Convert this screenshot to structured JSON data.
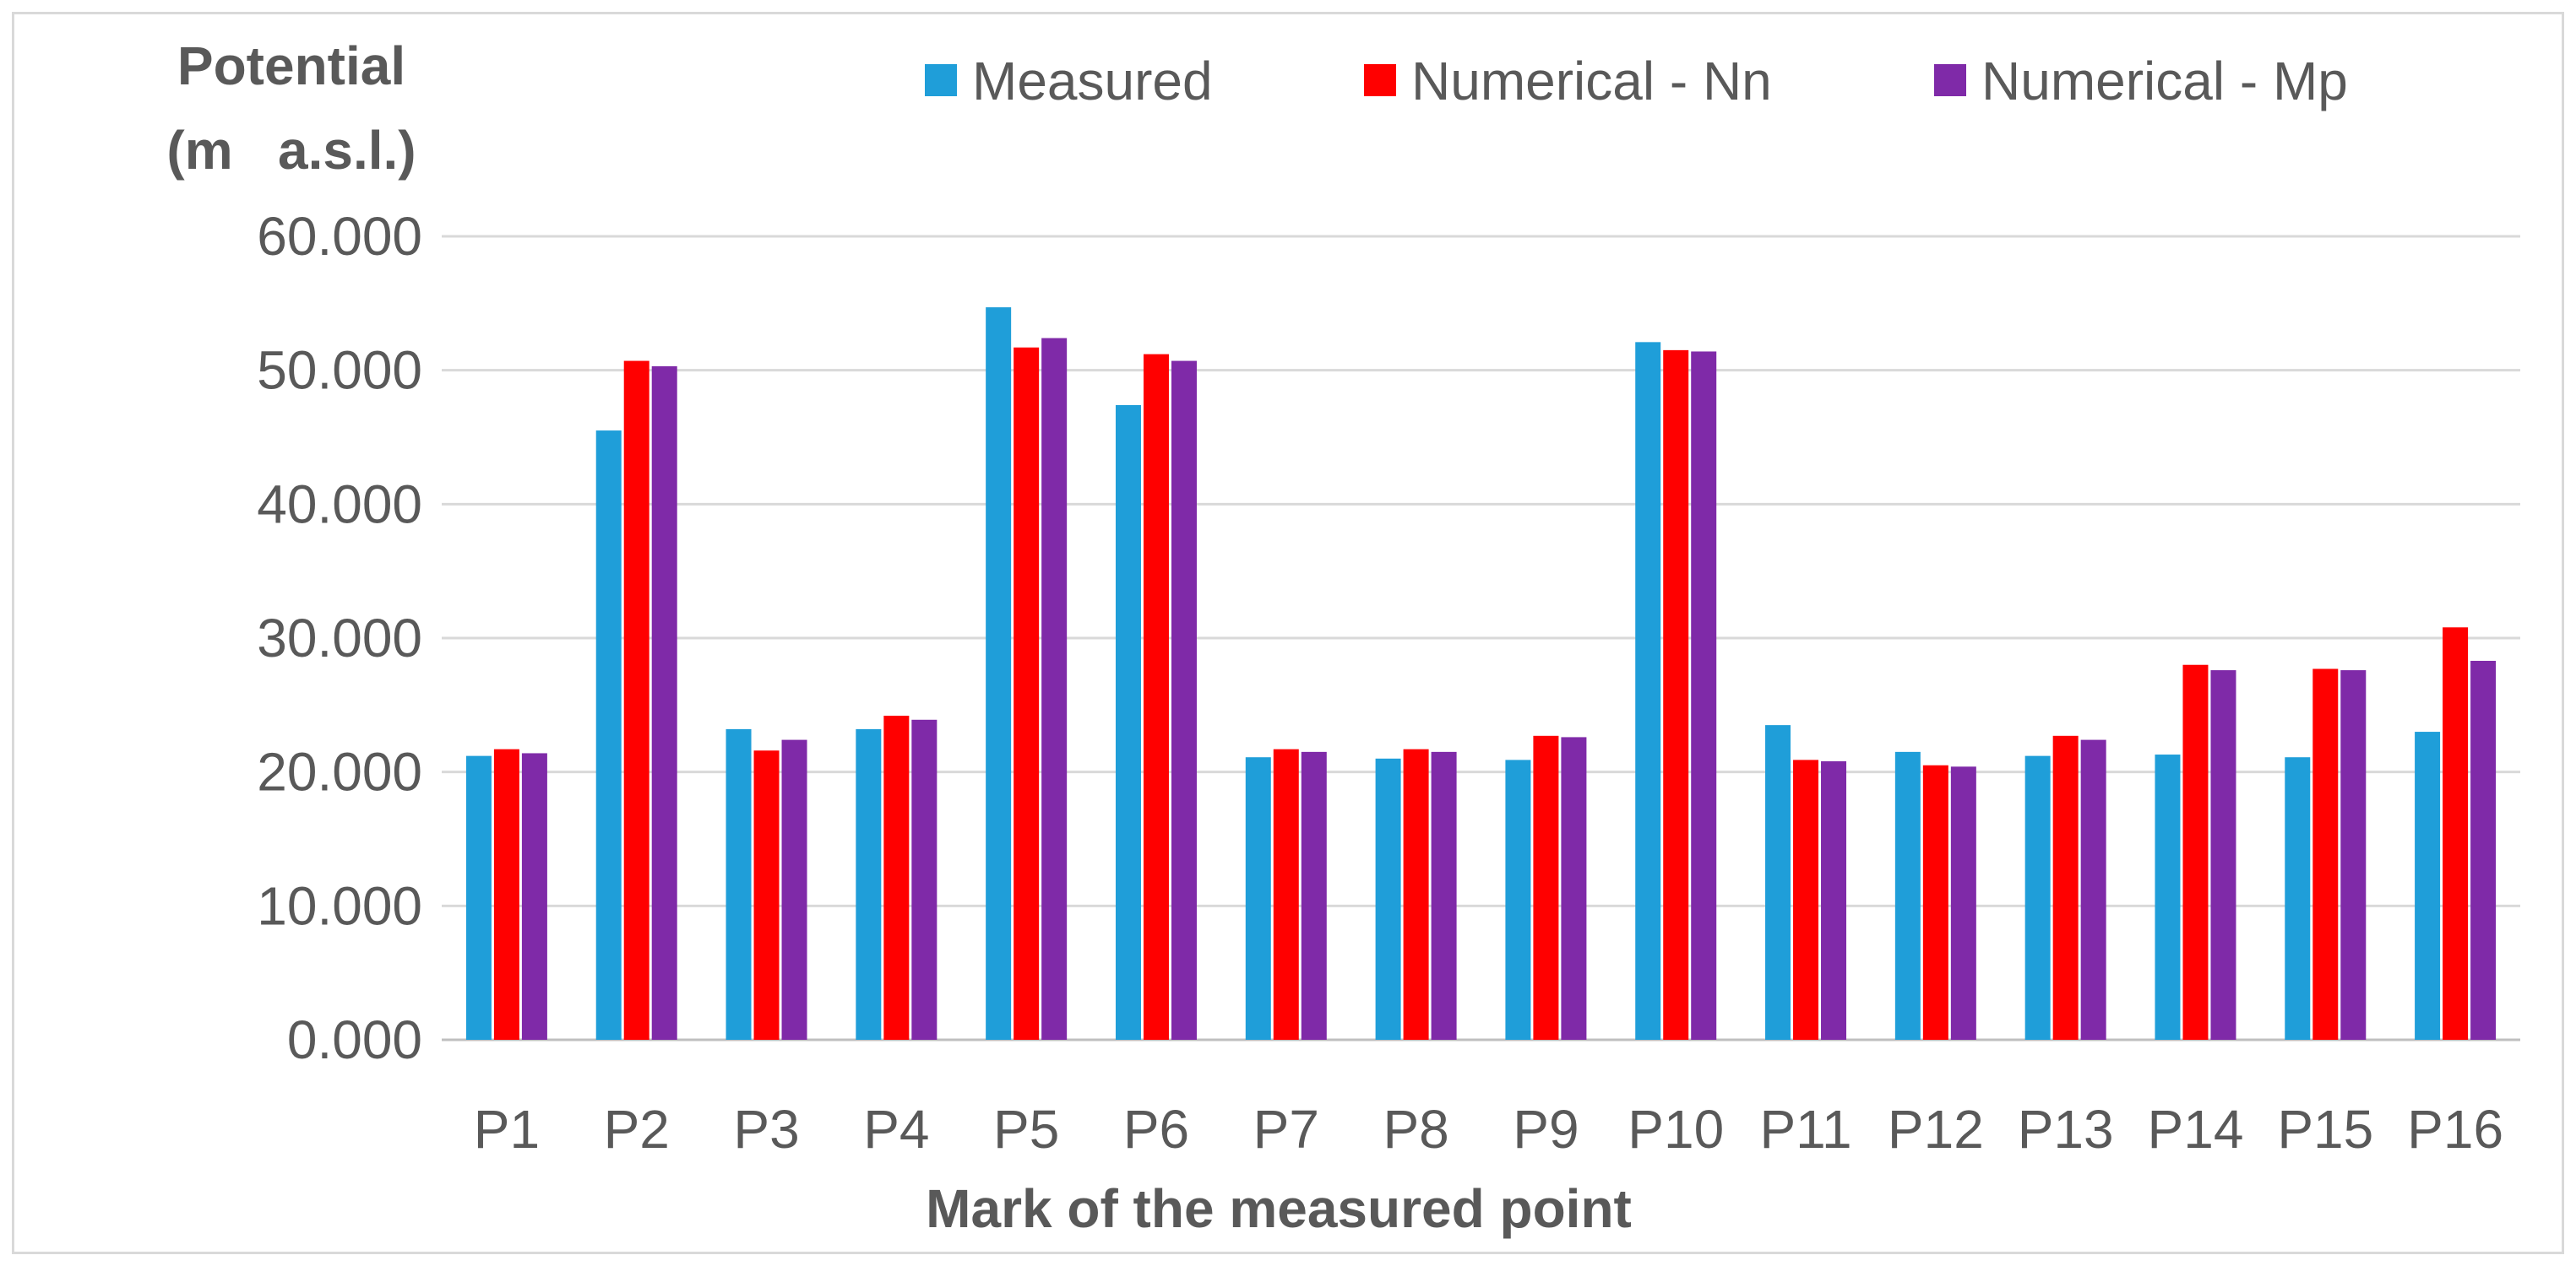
{
  "chart_data": {
    "type": "bar",
    "title": "",
    "ylabel_lines": [
      "Potential",
      "(m   a.s.l.)"
    ],
    "xlabel": "Mark of the measured point",
    "ylim": [
      0,
      60
    ],
    "yticks": [
      0,
      10,
      20,
      30,
      40,
      50,
      60
    ],
    "ytick_labels": [
      "0.000",
      "10.000",
      "20.000",
      "30.000",
      "40.000",
      "50.000",
      "60.000"
    ],
    "grid": true,
    "legend_position": "top",
    "categories": [
      "P1",
      "P2",
      "P3",
      "P4",
      "P5",
      "P6",
      "P7",
      "P8",
      "P9",
      "P10",
      "P11",
      "P12",
      "P13",
      "P14",
      "P15",
      "P16"
    ],
    "series": [
      {
        "name": "Measured",
        "color": "#1f9ed9",
        "values": [
          21.2,
          45.5,
          23.2,
          23.2,
          54.7,
          47.4,
          21.1,
          21.0,
          20.9,
          52.1,
          23.5,
          21.5,
          21.2,
          21.3,
          21.1,
          23.0
        ]
      },
      {
        "name": "Numerical - Nn",
        "color": "#ff0000",
        "values": [
          21.7,
          50.7,
          21.6,
          24.2,
          51.7,
          51.2,
          21.7,
          21.7,
          22.7,
          51.5,
          20.9,
          20.5,
          22.7,
          28.0,
          27.7,
          30.8
        ]
      },
      {
        "name": "Numerical - Mp",
        "color": "#7f2aa8",
        "values": [
          21.4,
          50.3,
          22.4,
          23.9,
          52.4,
          50.7,
          21.5,
          21.5,
          22.6,
          51.4,
          20.8,
          20.4,
          22.4,
          27.6,
          27.6,
          28.3
        ]
      }
    ]
  }
}
